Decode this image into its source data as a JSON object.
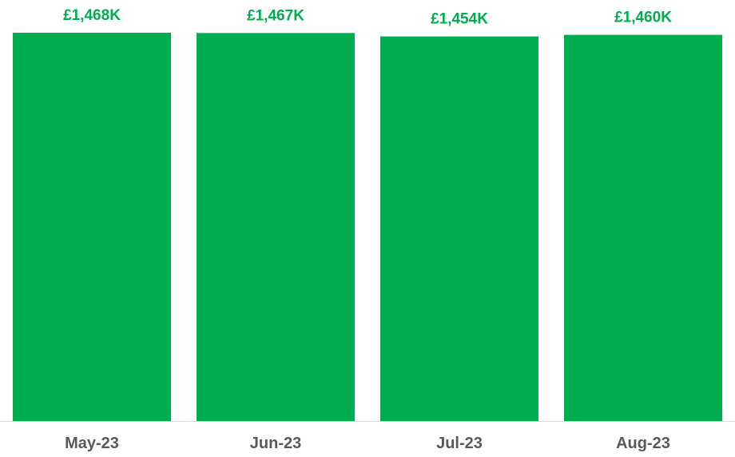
{
  "chart_data": {
    "type": "bar",
    "categories": [
      "May-23",
      "Jun-23",
      "Jul-23",
      "Aug-23"
    ],
    "values": [
      1468,
      1467,
      1454,
      1460
    ],
    "data_labels": [
      "£1,468K",
      "£1,467K",
      "£1,454K",
      "£1,460K"
    ],
    "title": "",
    "xlabel": "",
    "ylabel": "",
    "ylim": [
      0,
      1468
    ],
    "grid": false,
    "legend": "none",
    "bar_color": "#00AD4E",
    "label_color": "#00AD4E",
    "category_label_color": "#595959",
    "axis_line_color": "#D9D9D9"
  }
}
